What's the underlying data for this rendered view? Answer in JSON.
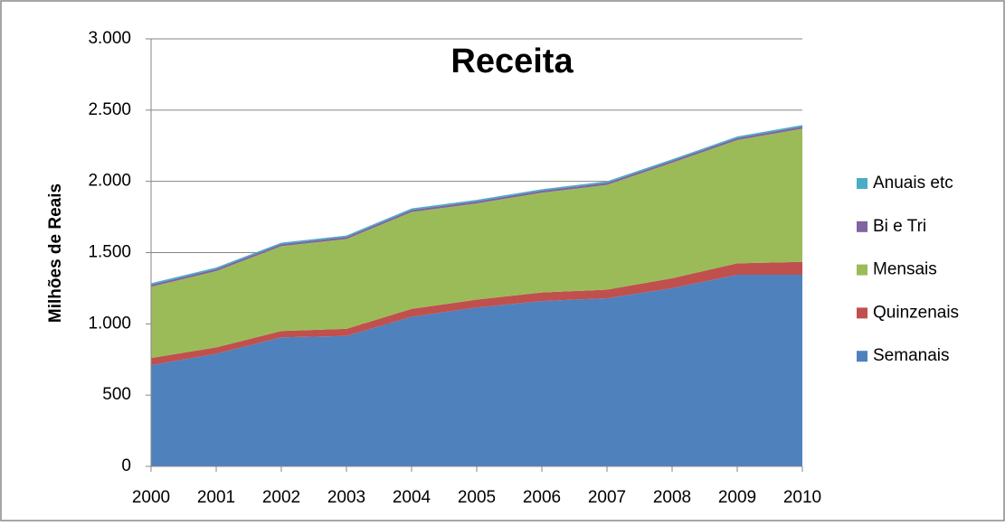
{
  "chart_data": {
    "type": "stacked-area",
    "title": "Receita",
    "y_label": "Milhões de Reais",
    "categories": [
      "2000",
      "2001",
      "2002",
      "2003",
      "2004",
      "2005",
      "2006",
      "2007",
      "2008",
      "2009",
      "2010"
    ],
    "series": [
      {
        "name": "Semanais",
        "color": "#4f81bd",
        "values": [
          710,
          790,
          905,
          915,
          1050,
          1115,
          1160,
          1180,
          1250,
          1345,
          1345
        ]
      },
      {
        "name": "Quinzenais",
        "color": "#c0504d",
        "values": [
          50,
          45,
          45,
          50,
          55,
          55,
          60,
          60,
          70,
          80,
          90
        ]
      },
      {
        "name": "Mensais",
        "color": "#9bbb59",
        "values": [
          500,
          535,
          595,
          630,
          680,
          675,
          700,
          735,
          810,
          865,
          935
        ]
      },
      {
        "name": "Bi e Tri",
        "color": "#8064a2",
        "values": [
          15,
          15,
          15,
          15,
          15,
          15,
          15,
          15,
          15,
          15,
          15
        ]
      },
      {
        "name": "Anuais etc",
        "color": "#4bacc6",
        "values": [
          10,
          10,
          10,
          10,
          10,
          10,
          10,
          10,
          10,
          10,
          10
        ]
      }
    ],
    "ylim": [
      0,
      3000
    ],
    "yticks": [
      0,
      500,
      {
        "value": 1000,
        "label": "1.000"
      },
      {
        "value": 1500,
        "label": "1.500"
      },
      {
        "value": 2000,
        "label": "2.000"
      },
      {
        "value": 2500,
        "label": "2.500"
      },
      {
        "value": 3000,
        "label": "3.000"
      }
    ],
    "grid": true,
    "legend": "right"
  }
}
